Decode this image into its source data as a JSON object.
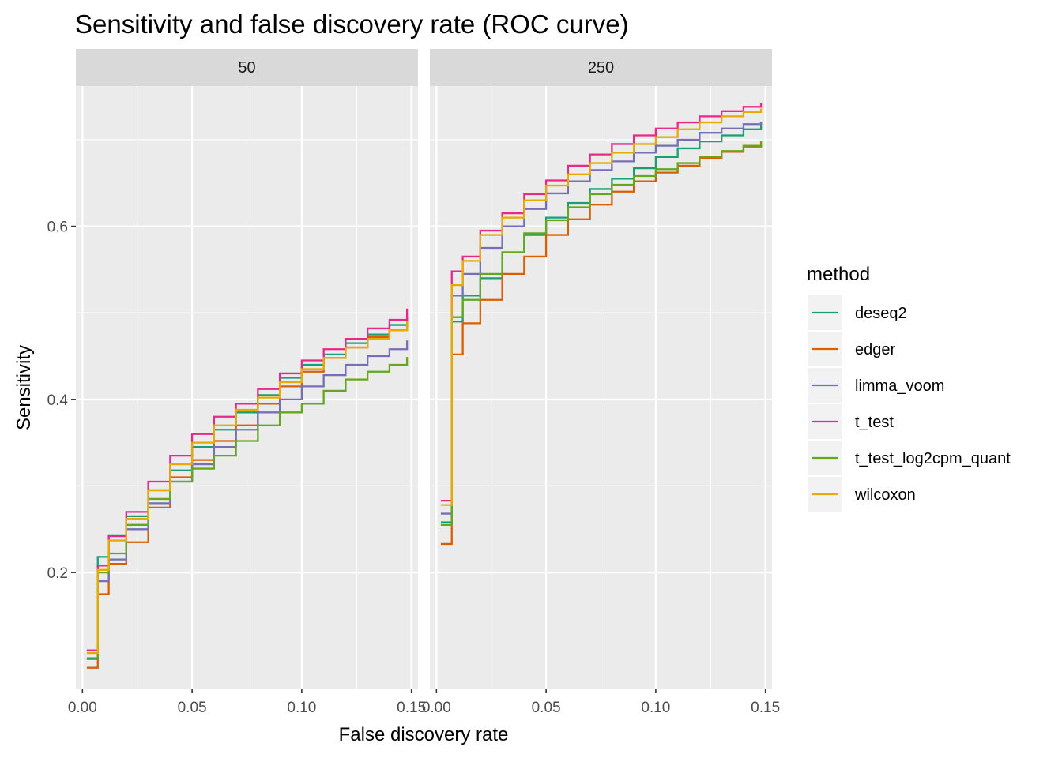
{
  "chart_data": {
    "type": "line",
    "line_style": "step",
    "title": "Sensitivity and false discovery rate (ROC curve)",
    "xlabel": "False discovery rate",
    "ylabel": "Sensitivity",
    "xlim": [
      -0.003,
      0.153
    ],
    "ylim": [
      0.066,
      0.762
    ],
    "x_ticks": [
      0.0,
      0.05,
      0.1,
      0.15
    ],
    "x_tick_labels": [
      "0.00",
      "0.05",
      "0.10",
      "0.15"
    ],
    "y_ticks": [
      0.2,
      0.4,
      0.6
    ],
    "y_tick_labels": [
      "0.2",
      "0.4",
      "0.6"
    ],
    "grid": true,
    "legend": {
      "title": "method",
      "position": "right"
    },
    "panels": [
      {
        "label": "50",
        "series": [
          {
            "name": "deseq2",
            "color": "#1b9e77",
            "points": [
              [
                0.002,
                0.101
              ],
              [
                0.007,
                0.218
              ],
              [
                0.012,
                0.243
              ],
              [
                0.02,
                0.265
              ],
              [
                0.03,
                0.295
              ],
              [
                0.04,
                0.318
              ],
              [
                0.05,
                0.345
              ],
              [
                0.06,
                0.365
              ],
              [
                0.07,
                0.385
              ],
              [
                0.08,
                0.405
              ],
              [
                0.09,
                0.425
              ],
              [
                0.1,
                0.44
              ],
              [
                0.11,
                0.452
              ],
              [
                0.12,
                0.465
              ],
              [
                0.13,
                0.475
              ],
              [
                0.14,
                0.486
              ],
              [
                0.148,
                0.495
              ]
            ]
          },
          {
            "name": "edger",
            "color": "#d95f02",
            "points": [
              [
                0.002,
                0.09
              ],
              [
                0.007,
                0.175
              ],
              [
                0.012,
                0.21
              ],
              [
                0.02,
                0.235
              ],
              [
                0.03,
                0.275
              ],
              [
                0.04,
                0.31
              ],
              [
                0.05,
                0.33
              ],
              [
                0.06,
                0.352
              ],
              [
                0.07,
                0.37
              ],
              [
                0.08,
                0.395
              ],
              [
                0.09,
                0.415
              ],
              [
                0.1,
                0.432
              ],
              [
                0.11,
                0.448
              ],
              [
                0.12,
                0.46
              ],
              [
                0.13,
                0.472
              ],
              [
                0.14,
                0.48
              ],
              [
                0.148,
                0.492
              ]
            ]
          },
          {
            "name": "limma_voom",
            "color": "#7570b3",
            "points": [
              [
                0.002,
                0.11
              ],
              [
                0.007,
                0.19
              ],
              [
                0.012,
                0.215
              ],
              [
                0.02,
                0.25
              ],
              [
                0.03,
                0.28
              ],
              [
                0.04,
                0.305
              ],
              [
                0.05,
                0.325
              ],
              [
                0.06,
                0.345
              ],
              [
                0.07,
                0.365
              ],
              [
                0.08,
                0.385
              ],
              [
                0.09,
                0.4
              ],
              [
                0.1,
                0.415
              ],
              [
                0.11,
                0.428
              ],
              [
                0.12,
                0.44
              ],
              [
                0.13,
                0.45
              ],
              [
                0.14,
                0.458
              ],
              [
                0.148,
                0.468
              ]
            ]
          },
          {
            "name": "t_test",
            "color": "#e7298a",
            "points": [
              [
                0.002,
                0.11
              ],
              [
                0.007,
                0.208
              ],
              [
                0.012,
                0.242
              ],
              [
                0.02,
                0.27
              ],
              [
                0.03,
                0.305
              ],
              [
                0.04,
                0.335
              ],
              [
                0.05,
                0.36
              ],
              [
                0.06,
                0.38
              ],
              [
                0.07,
                0.395
              ],
              [
                0.08,
                0.412
              ],
              [
                0.09,
                0.43
              ],
              [
                0.1,
                0.445
              ],
              [
                0.11,
                0.458
              ],
              [
                0.12,
                0.47
              ],
              [
                0.13,
                0.482
              ],
              [
                0.14,
                0.492
              ],
              [
                0.148,
                0.505
              ]
            ]
          },
          {
            "name": "t_test_log2cpm_quant",
            "color": "#66a61e",
            "points": [
              [
                0.002,
                0.1
              ],
              [
                0.007,
                0.2
              ],
              [
                0.012,
                0.222
              ],
              [
                0.02,
                0.255
              ],
              [
                0.03,
                0.285
              ],
              [
                0.04,
                0.305
              ],
              [
                0.05,
                0.32
              ],
              [
                0.06,
                0.335
              ],
              [
                0.07,
                0.352
              ],
              [
                0.08,
                0.37
              ],
              [
                0.09,
                0.385
              ],
              [
                0.1,
                0.395
              ],
              [
                0.11,
                0.41
              ],
              [
                0.12,
                0.423
              ],
              [
                0.13,
                0.432
              ],
              [
                0.14,
                0.44
              ],
              [
                0.148,
                0.449
              ]
            ]
          },
          {
            "name": "wilcoxon",
            "color": "#e6ab02",
            "points": [
              [
                0.002,
                0.107
              ],
              [
                0.007,
                0.203
              ],
              [
                0.012,
                0.237
              ],
              [
                0.02,
                0.262
              ],
              [
                0.03,
                0.295
              ],
              [
                0.04,
                0.325
              ],
              [
                0.05,
                0.35
              ],
              [
                0.06,
                0.37
              ],
              [
                0.07,
                0.388
              ],
              [
                0.08,
                0.402
              ],
              [
                0.09,
                0.42
              ],
              [
                0.1,
                0.435
              ],
              [
                0.11,
                0.448
              ],
              [
                0.12,
                0.46
              ],
              [
                0.13,
                0.47
              ],
              [
                0.14,
                0.48
              ],
              [
                0.148,
                0.49
              ]
            ]
          }
        ]
      },
      {
        "label": "250",
        "series": [
          {
            "name": "deseq2",
            "color": "#1b9e77",
            "points": [
              [
                0.002,
                0.258
              ],
              [
                0.007,
                0.49
              ],
              [
                0.012,
                0.52
              ],
              [
                0.02,
                0.54
              ],
              [
                0.03,
                0.57
              ],
              [
                0.04,
                0.59
              ],
              [
                0.05,
                0.61
              ],
              [
                0.06,
                0.627
              ],
              [
                0.07,
                0.643
              ],
              [
                0.08,
                0.655
              ],
              [
                0.09,
                0.667
              ],
              [
                0.1,
                0.68
              ],
              [
                0.11,
                0.69
              ],
              [
                0.12,
                0.698
              ],
              [
                0.13,
                0.705
              ],
              [
                0.14,
                0.712
              ],
              [
                0.148,
                0.72
              ]
            ]
          },
          {
            "name": "edger",
            "color": "#d95f02",
            "points": [
              [
                0.002,
                0.233
              ],
              [
                0.007,
                0.452
              ],
              [
                0.012,
                0.488
              ],
              [
                0.02,
                0.515
              ],
              [
                0.03,
                0.545
              ],
              [
                0.04,
                0.565
              ],
              [
                0.05,
                0.59
              ],
              [
                0.06,
                0.608
              ],
              [
                0.07,
                0.625
              ],
              [
                0.08,
                0.64
              ],
              [
                0.09,
                0.652
              ],
              [
                0.1,
                0.662
              ],
              [
                0.11,
                0.67
              ],
              [
                0.12,
                0.679
              ],
              [
                0.13,
                0.686
              ],
              [
                0.14,
                0.692
              ],
              [
                0.148,
                0.698
              ]
            ]
          },
          {
            "name": "limma_voom",
            "color": "#7570b3",
            "points": [
              [
                0.002,
                0.268
              ],
              [
                0.007,
                0.52
              ],
              [
                0.012,
                0.545
              ],
              [
                0.02,
                0.575
              ],
              [
                0.03,
                0.6
              ],
              [
                0.04,
                0.62
              ],
              [
                0.05,
                0.638
              ],
              [
                0.06,
                0.652
              ],
              [
                0.07,
                0.665
              ],
              [
                0.08,
                0.675
              ],
              [
                0.09,
                0.685
              ],
              [
                0.1,
                0.693
              ],
              [
                0.11,
                0.7
              ],
              [
                0.12,
                0.708
              ],
              [
                0.13,
                0.713
              ],
              [
                0.14,
                0.718
              ],
              [
                0.148,
                0.72
              ]
            ]
          },
          {
            "name": "t_test",
            "color": "#e7298a",
            "points": [
              [
                0.002,
                0.283
              ],
              [
                0.007,
                0.548
              ],
              [
                0.012,
                0.565
              ],
              [
                0.02,
                0.595
              ],
              [
                0.03,
                0.615
              ],
              [
                0.04,
                0.637
              ],
              [
                0.05,
                0.653
              ],
              [
                0.06,
                0.67
              ],
              [
                0.07,
                0.683
              ],
              [
                0.08,
                0.695
              ],
              [
                0.09,
                0.705
              ],
              [
                0.1,
                0.713
              ],
              [
                0.11,
                0.72
              ],
              [
                0.12,
                0.727
              ],
              [
                0.13,
                0.733
              ],
              [
                0.14,
                0.738
              ],
              [
                0.148,
                0.742
              ]
            ]
          },
          {
            "name": "t_test_log2cpm_quant",
            "color": "#66a61e",
            "points": [
              [
                0.002,
                0.255
              ],
              [
                0.007,
                0.495
              ],
              [
                0.012,
                0.515
              ],
              [
                0.02,
                0.545
              ],
              [
                0.03,
                0.57
              ],
              [
                0.04,
                0.592
              ],
              [
                0.05,
                0.607
              ],
              [
                0.06,
                0.622
              ],
              [
                0.07,
                0.637
              ],
              [
                0.08,
                0.648
              ],
              [
                0.09,
                0.658
              ],
              [
                0.1,
                0.666
              ],
              [
                0.11,
                0.673
              ],
              [
                0.12,
                0.68
              ],
              [
                0.13,
                0.687
              ],
              [
                0.14,
                0.693
              ],
              [
                0.148,
                0.697
              ]
            ]
          },
          {
            "name": "wilcoxon",
            "color": "#e6ab02",
            "points": [
              [
                0.002,
                0.278
              ],
              [
                0.007,
                0.532
              ],
              [
                0.012,
                0.56
              ],
              [
                0.02,
                0.59
              ],
              [
                0.03,
                0.61
              ],
              [
                0.04,
                0.63
              ],
              [
                0.05,
                0.647
              ],
              [
                0.06,
                0.66
              ],
              [
                0.07,
                0.673
              ],
              [
                0.08,
                0.685
              ],
              [
                0.09,
                0.695
              ],
              [
                0.1,
                0.703
              ],
              [
                0.11,
                0.712
              ],
              [
                0.12,
                0.72
              ],
              [
                0.13,
                0.727
              ],
              [
                0.14,
                0.732
              ],
              [
                0.148,
                0.736
              ]
            ]
          }
        ]
      }
    ]
  }
}
